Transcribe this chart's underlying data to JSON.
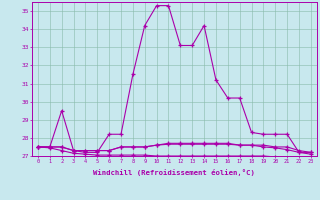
{
  "xlabel": "Windchill (Refroidissement éolien,°C)",
  "bg_color": "#c8e8ee",
  "grid_color": "#88bbaa",
  "line_color": "#aa00aa",
  "x": [
    0,
    1,
    2,
    3,
    4,
    5,
    6,
    7,
    8,
    9,
    10,
    11,
    12,
    13,
    14,
    15,
    16,
    17,
    18,
    19,
    20,
    21,
    22,
    23
  ],
  "series1": [
    27.5,
    27.5,
    29.5,
    27.3,
    27.2,
    27.2,
    28.2,
    28.2,
    31.5,
    34.2,
    35.3,
    35.3,
    33.1,
    33.1,
    34.2,
    31.2,
    30.2,
    30.2,
    28.3,
    28.2,
    28.2,
    28.2,
    27.2,
    27.2
  ],
  "series2": [
    27.5,
    27.5,
    27.5,
    27.3,
    27.3,
    27.3,
    27.3,
    27.5,
    27.5,
    27.5,
    27.6,
    27.7,
    27.7,
    27.7,
    27.7,
    27.7,
    27.7,
    27.6,
    27.6,
    27.6,
    27.5,
    27.5,
    27.3,
    27.2
  ],
  "series3": [
    27.5,
    27.5,
    27.5,
    27.3,
    27.3,
    27.3,
    27.3,
    27.5,
    27.5,
    27.5,
    27.6,
    27.65,
    27.65,
    27.65,
    27.65,
    27.65,
    27.65,
    27.6,
    27.6,
    27.5,
    27.45,
    27.35,
    27.2,
    27.1
  ],
  "series4": [
    27.5,
    27.45,
    27.3,
    27.15,
    27.1,
    27.05,
    27.05,
    27.05,
    27.05,
    27.05,
    27.0,
    27.0,
    27.0,
    27.0,
    27.0,
    27.0,
    27.0,
    27.0,
    27.0,
    27.0,
    26.95,
    26.9,
    26.85,
    26.75
  ],
  "ylim": [
    27.0,
    35.5
  ],
  "xlim": [
    -0.5,
    23.5
  ],
  "yticks": [
    27,
    28,
    29,
    30,
    31,
    32,
    33,
    34,
    35
  ],
  "xticks": [
    0,
    1,
    2,
    3,
    4,
    5,
    6,
    7,
    8,
    9,
    10,
    11,
    12,
    13,
    14,
    15,
    16,
    17,
    18,
    19,
    20,
    21,
    22,
    23
  ]
}
